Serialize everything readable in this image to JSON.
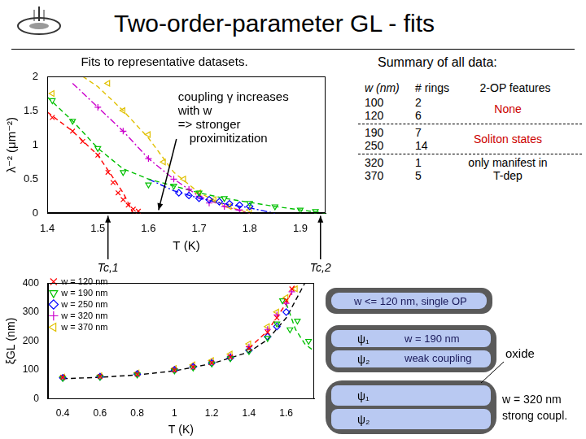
{
  "title": "Two-order-parameter GL - fits",
  "chart_data": [
    {
      "type": "scatter",
      "title": "Fits to representative datasets.",
      "x_label": "T (K)",
      "y_label": "λ⁻² (μm⁻²)",
      "xlim": [
        1.4,
        1.95
      ],
      "xticks": [
        1.4,
        1.5,
        1.6,
        1.7,
        1.8,
        1.9
      ],
      "ylim": [
        0,
        2
      ],
      "yticks": [
        0,
        0.5,
        1,
        1.5,
        2
      ],
      "grid": false,
      "annotations": [
        {
          "lines": [
            "coupling γ increases",
            "with w",
            "=> stronger",
            "proximitization"
          ]
        },
        {
          "text": "Tc,1",
          "x": 1.52
        },
        {
          "text": "Tc,2",
          "x": 1.94
        }
      ],
      "series": [
        {
          "type": "scatter",
          "color": "#ff0000",
          "marker": "x",
          "x": [
            1.41,
            1.45,
            1.47,
            1.5,
            1.52,
            1.53,
            1.54,
            1.55,
            1.56,
            1.57,
            1.58
          ],
          "values": [
            1.4,
            1.2,
            1.05,
            0.85,
            0.6,
            0.45,
            0.3,
            0.2,
            0.12,
            0.06,
            0.03
          ]
        },
        {
          "type": "scatter",
          "color": "#00c000",
          "marker": "triangle-down",
          "x": [
            1.41,
            1.45,
            1.5,
            1.55,
            1.6,
            1.65,
            1.7,
            1.75,
            1.8,
            1.85,
            1.9,
            1.93
          ],
          "values": [
            1.65,
            1.35,
            0.95,
            0.6,
            0.42,
            0.4,
            0.3,
            0.22,
            0.15,
            0.1,
            0.05,
            0.03
          ]
        },
        {
          "type": "scatter",
          "color": "#0000ff",
          "marker": "diamond",
          "x": [
            1.66,
            1.68,
            1.7,
            1.72,
            1.74,
            1.76,
            1.78,
            1.8
          ],
          "values": [
            0.3,
            0.26,
            0.22,
            0.2,
            0.17,
            0.14,
            0.12,
            0.1
          ]
        },
        {
          "type": "scatter",
          "color": "#cc00cc",
          "marker": "plus",
          "x": [
            1.5,
            1.55,
            1.6,
            1.65,
            1.68,
            1.7,
            1.72,
            1.75,
            1.78
          ],
          "values": [
            1.55,
            1.2,
            0.8,
            0.5,
            0.35,
            0.25,
            0.15,
            0.1,
            0.05
          ]
        },
        {
          "type": "scatter",
          "color": "#e0c000",
          "marker": "triangle-left",
          "x": [
            1.41,
            1.52,
            1.55,
            1.6,
            1.63,
            1.67,
            1.7,
            1.73,
            1.76,
            1.8
          ],
          "values": [
            1.75,
            1.9,
            1.5,
            1.15,
            0.75,
            0.5,
            0.3,
            0.2,
            0.1,
            0.05
          ]
        },
        {
          "type": "line",
          "color": "#ff0000",
          "line_style": "dashed",
          "marker": "none",
          "x": [
            1.4,
            1.45,
            1.5,
            1.55,
            1.57
          ],
          "values": [
            1.48,
            1.2,
            0.85,
            0.3,
            0
          ]
        },
        {
          "type": "line",
          "color": "#00c000",
          "line_style": "dashed",
          "marker": "none",
          "x": [
            1.4,
            1.45,
            1.5,
            1.55,
            1.6,
            1.65,
            1.7,
            1.75,
            1.8,
            1.85,
            1.9,
            1.95
          ],
          "values": [
            1.7,
            1.35,
            0.95,
            0.65,
            0.5,
            0.4,
            0.3,
            0.22,
            0.16,
            0.1,
            0.05,
            0
          ]
        },
        {
          "type": "line",
          "color": "#0000ff",
          "line_style": "dashdot",
          "marker": "none",
          "x": [
            1.6,
            1.65,
            1.7,
            1.75,
            1.8,
            1.85
          ],
          "values": [
            0.5,
            0.33,
            0.22,
            0.14,
            0.08,
            0
          ]
        },
        {
          "type": "line",
          "color": "#cc00cc",
          "line_style": "dashdot",
          "marker": "none",
          "x": [
            1.45,
            1.5,
            1.55,
            1.6,
            1.65,
            1.7,
            1.75,
            1.8
          ],
          "values": [
            1.9,
            1.55,
            1.2,
            0.8,
            0.5,
            0.25,
            0.1,
            0
          ]
        },
        {
          "type": "line",
          "color": "#e0c000",
          "line_style": "dashed",
          "marker": "none",
          "x": [
            1.47,
            1.5,
            1.55,
            1.6,
            1.65,
            1.7,
            1.75,
            1.8
          ],
          "values": [
            2,
            1.85,
            1.5,
            1.1,
            0.6,
            0.3,
            0.12,
            0
          ]
        }
      ]
    },
    {
      "type": "scatter",
      "x_label": "T (K)",
      "y_label": "ξGL (nm)",
      "xlim": [
        0.32,
        1.75
      ],
      "xticks": [
        0.4,
        0.6,
        0.8,
        1,
        1.2,
        1.4,
        1.6
      ],
      "ylim": [
        0,
        400
      ],
      "yticks": [
        0,
        100,
        200,
        300,
        400
      ],
      "grid": false,
      "legend": "upper left",
      "series": [
        {
          "type": "scatter",
          "name": "w = 120 nm",
          "color": "#ff0000",
          "marker": "x",
          "x": [
            0.4,
            0.6,
            0.8,
            1,
            1.1,
            1.2,
            1.3,
            1.4,
            1.5,
            1.55,
            1.6,
            1.63
          ],
          "values": [
            75,
            78,
            85,
            100,
            110,
            125,
            145,
            175,
            230,
            280,
            340,
            380
          ]
        },
        {
          "type": "scatter",
          "name": "w = 190 nm",
          "color": "#00c000",
          "marker": "triangle-down",
          "x": [
            0.4,
            0.6,
            0.8,
            1,
            1.1,
            1.2,
            1.3,
            1.4,
            1.5,
            1.55,
            1.58,
            1.62,
            1.66,
            1.72
          ],
          "values": [
            72,
            76,
            84,
            98,
            108,
            122,
            140,
            165,
            210,
            260,
            340,
            240,
            270,
            200
          ]
        },
        {
          "type": "scatter",
          "name": "w = 250 nm",
          "color": "#0000ff",
          "marker": "diamond",
          "x": [
            0.4,
            0.6,
            0.8,
            1,
            1.1,
            1.2,
            1.3,
            1.4,
            1.5,
            1.55,
            1.6
          ],
          "values": [
            73,
            77,
            86,
            100,
            111,
            124,
            142,
            168,
            215,
            250,
            300
          ]
        },
        {
          "type": "scatter",
          "name": "w = 320 nm",
          "color": "#cc00cc",
          "marker": "plus",
          "x": [
            0.4,
            0.6,
            0.8,
            1,
            1.1,
            1.2,
            1.3,
            1.4,
            1.5,
            1.55,
            1.6,
            1.63
          ],
          "values": [
            74,
            79,
            88,
            103,
            114,
            128,
            148,
            180,
            240,
            290,
            330,
            370
          ]
        },
        {
          "type": "scatter",
          "name": "w = 370 nm",
          "color": "#e0c000",
          "marker": "triangle-left",
          "x": [
            0.4,
            0.6,
            0.8,
            1,
            1.1,
            1.2,
            1.3,
            1.4,
            1.5,
            1.55,
            1.6,
            1.65
          ],
          "values": [
            76,
            80,
            90,
            105,
            118,
            133,
            155,
            190,
            250,
            300,
            350,
            380
          ]
        },
        {
          "type": "line",
          "color": "#000000",
          "line_style": "dashed",
          "marker": "none",
          "x": [
            0.4,
            0.6,
            0.8,
            1,
            1.2,
            1.4,
            1.5,
            1.6,
            1.65,
            1.7
          ],
          "values": [
            70,
            75,
            83,
            97,
            122,
            162,
            205,
            280,
            340,
            400
          ]
        },
        {
          "type": "line",
          "color": "#00c000",
          "line_style": "dashed",
          "marker": "none",
          "x": [
            1.6,
            1.65,
            1.7,
            1.75
          ],
          "values": [
            330,
            240,
            190,
            165
          ]
        },
        {
          "type": "line",
          "color": "#ff0000",
          "line_style": "dashed",
          "marker": "none",
          "x": [
            1.4,
            1.5,
            1.6,
            1.65
          ],
          "values": [
            175,
            235,
            330,
            400
          ]
        }
      ]
    }
  ],
  "summary": {
    "title": "Summary of all data:",
    "columns": [
      "w (nm)",
      "# rings",
      "2-OP features"
    ],
    "groups": [
      {
        "feature": "None",
        "color": "#cc0000",
        "rows": [
          [
            100,
            2
          ],
          [
            120,
            6
          ]
        ]
      },
      {
        "feature": "Soliton states",
        "color": "#cc0000",
        "rows": [
          [
            190,
            7
          ],
          [
            250,
            14
          ]
        ]
      },
      {
        "feature": "only manifest in T-dep",
        "color": "#000000",
        "rows": [
          [
            320,
            1
          ],
          [
            370,
            5
          ]
        ]
      }
    ]
  },
  "diagram": {
    "items": [
      {
        "label": [
          "w <= 120 nm, single OP"
        ],
        "layers": []
      },
      {
        "label": [
          "w = 190 nm",
          "weak coupling"
        ],
        "layers": [
          "ψ₁",
          "ψ₂"
        ]
      },
      {
        "label": [
          "w = 320 nm",
          "strong coupl."
        ],
        "layers": [
          "ψ₁",
          "ψ₂"
        ]
      }
    ],
    "annotation": "oxide"
  }
}
